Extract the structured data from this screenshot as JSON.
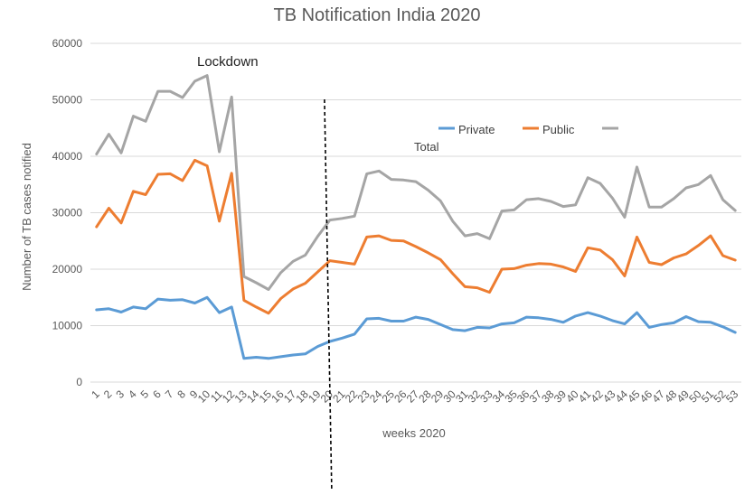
{
  "chart_data": {
    "type": "line",
    "title": "TB Notification India 2020",
    "xlabel": "weeks 2020",
    "ylabel": "Number of TB cases notified",
    "ylim": [
      0,
      60000
    ],
    "yticks": [
      0,
      10000,
      20000,
      30000,
      40000,
      50000,
      60000
    ],
    "grid": "horizontal",
    "legend_position": "top-right",
    "legend_third_label": "Total",
    "annotation": {
      "text": "Lockdown",
      "at_week": 12
    },
    "marker_line_week": 20,
    "x": [
      "1",
      "2",
      "3",
      "4",
      "5",
      "6",
      "7",
      "8",
      "9",
      "10",
      "11",
      "12",
      "13",
      "14",
      "15",
      "16",
      "17",
      "18",
      "19",
      "20",
      "21",
      "22",
      "23",
      "24",
      "25",
      "26",
      "27",
      "28",
      "29",
      "30",
      "31",
      "32",
      "33",
      "34",
      "35",
      "36",
      "37",
      "38",
      "39",
      "40",
      "41",
      "42",
      "43",
      "44",
      "45",
      "46",
      "47",
      "48",
      "49",
      "50",
      "51",
      "52",
      "53"
    ],
    "series": [
      {
        "name": "Private",
        "color": "#5b9bd5",
        "values": [
          12800,
          13000,
          12400,
          13300,
          13000,
          14700,
          14500,
          14600,
          14000,
          15000,
          12300,
          13300,
          4200,
          4400,
          4200,
          4500,
          4800,
          5000,
          6300,
          7200,
          7800,
          8500,
          11200,
          11300,
          10800,
          10800,
          11500,
          11100,
          10200,
          9300,
          9100,
          9700,
          9600,
          10300,
          10500,
          11500,
          11400,
          11100,
          10600,
          11700,
          12300,
          11700,
          10900,
          10300,
          12300,
          9700,
          10200,
          10500,
          11600,
          10700,
          10600,
          9800,
          8800
        ]
      },
      {
        "name": "Public",
        "color": "#ed7d31",
        "values": [
          27500,
          30800,
          28200,
          33800,
          33200,
          36800,
          36900,
          35700,
          39300,
          38300,
          28500,
          37000,
          14500,
          13300,
          12200,
          14800,
          16500,
          17500,
          19500,
          21500,
          21200,
          20900,
          25700,
          25900,
          25100,
          25000,
          24000,
          22900,
          21700,
          19200,
          16900,
          16700,
          15900,
          20000,
          20100,
          20700,
          21000,
          20900,
          20400,
          19600,
          23800,
          23400,
          21700,
          18800,
          25700,
          21200,
          20800,
          22000,
          22700,
          24200,
          25900,
          22400,
          21600
        ]
      },
      {
        "name": "",
        "color": "#a5a5a5",
        "values": [
          40400,
          43900,
          40600,
          47100,
          46200,
          51500,
          51500,
          50400,
          53300,
          54300,
          40800,
          50500,
          18700,
          17600,
          16400,
          19400,
          21400,
          22500,
          25800,
          28700,
          29000,
          29400,
          36900,
          37400,
          35900,
          35800,
          35500,
          34000,
          32100,
          28500,
          25900,
          26300,
          25400,
          30300,
          30500,
          32300,
          32500,
          32000,
          31100,
          31400,
          36200,
          35200,
          32600,
          29200,
          38100,
          31000,
          31000,
          32500,
          34400,
          35000,
          36600,
          32300,
          30400
        ]
      }
    ]
  }
}
